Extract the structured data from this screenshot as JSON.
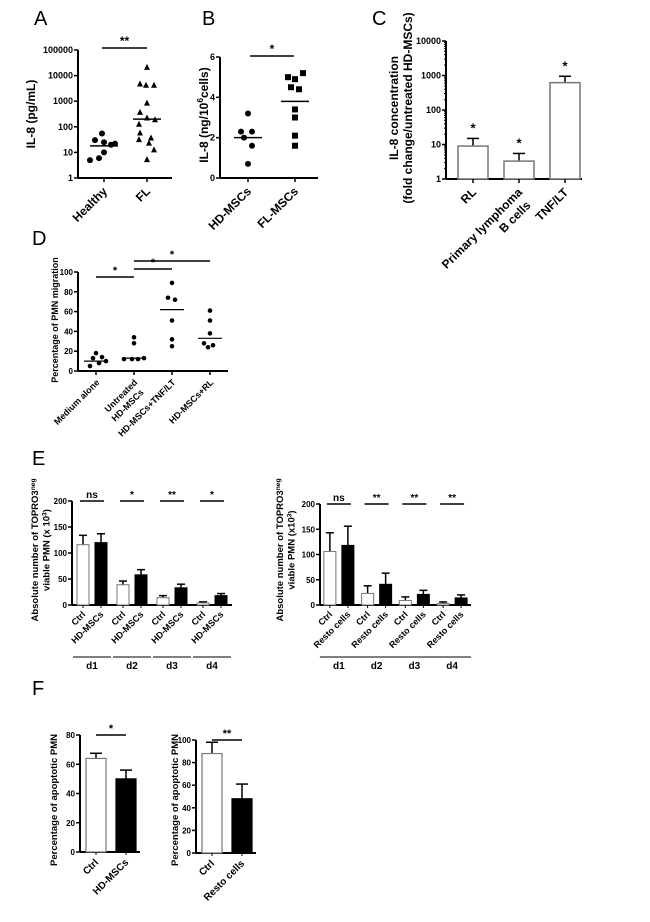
{
  "panels": {
    "A": "A",
    "B": "B",
    "C": "C",
    "D": "D",
    "E": "E",
    "F": "F"
  },
  "chart_data": [
    {
      "id": "A",
      "type": "scatter",
      "ylabel": "IL-8 (pg/mL)",
      "yscale": "log",
      "ylim": [
        1,
        100000
      ],
      "yticks": [
        "1",
        "10",
        "100",
        "1000",
        "10000",
        "100000"
      ],
      "categories": [
        "Healthy",
        "FL"
      ],
      "series": [
        {
          "name": "Healthy",
          "marker": "circle",
          "values": [
            55,
            30,
            25,
            22,
            10,
            5,
            6,
            20
          ],
          "median": 18
        },
        {
          "name": "FL",
          "marker": "triangle",
          "values": [
            20000,
            4500,
            4000,
            4000,
            800,
            350,
            210,
            180,
            120,
            55,
            35,
            30,
            22,
            12,
            5
          ],
          "median": 200
        }
      ],
      "significance": [
        {
          "from": 0,
          "to": 1,
          "label": "**"
        }
      ]
    },
    {
      "id": "B",
      "type": "scatter",
      "ylabel": "IL-8 (ng/10^6cells)",
      "ylim": [
        0,
        6
      ],
      "yticks": [
        "0",
        "2",
        "4",
        "6"
      ],
      "categories": [
        "HD-MSCs",
        "FL-MSCs"
      ],
      "series": [
        {
          "name": "HD-MSCs",
          "marker": "circle",
          "values": [
            3.2,
            2.3,
            2.3,
            2.0,
            1.6,
            0.7
          ],
          "median": 2.0
        },
        {
          "name": "FL-MSCs",
          "marker": "square",
          "values": [
            5.2,
            5.0,
            4.9,
            4.5,
            4.4,
            3.4,
            3.0,
            2.1,
            1.6
          ],
          "median": 3.8
        }
      ],
      "significance": [
        {
          "from": 0,
          "to": 1,
          "label": "*"
        }
      ]
    },
    {
      "id": "C",
      "type": "bar",
      "ylabel": "IL-8 concentration",
      "ylabel2": "(fold change/untreated HD-MSCs)",
      "yscale": "log",
      "ylim": [
        1,
        10000
      ],
      "yticks": [
        "1",
        "10",
        "100",
        "1000",
        "10000"
      ],
      "categories": [
        "RL",
        "Primary lymphoma B cells",
        "TNF/LT"
      ],
      "category_lines": [
        [
          "RL"
        ],
        [
          "Primary lymphoma",
          "B cells"
        ],
        [
          "TNF/LT"
        ]
      ],
      "values": [
        9,
        3.3,
        620
      ],
      "errors_upper": [
        15,
        5.5,
        950
      ],
      "labels": [
        "*",
        "*",
        "*"
      ]
    },
    {
      "id": "D",
      "type": "scatter",
      "ylabel": "Percentage of PMN migration",
      "ylim": [
        0,
        100
      ],
      "yticks": [
        "0",
        "20",
        "40",
        "60",
        "80",
        "100"
      ],
      "categories": [
        "Medium alone",
        "Untreated HD-MSCs",
        "HD-MSCs+TNF/LT",
        "HD-MSCs+RL"
      ],
      "category_lines": [
        [
          "Medium alone"
        ],
        [
          "Untreated",
          "HD-MSCs"
        ],
        [
          "HD-MSCs+TNF/LT"
        ],
        [
          "HD-MSCs+RL"
        ]
      ],
      "series": [
        {
          "name": "Medium alone",
          "values": [
            18,
            14,
            13,
            10,
            8,
            5
          ],
          "median": 10
        },
        {
          "name": "Untreated HD-MSCs",
          "values": [
            34,
            28,
            13,
            12,
            12,
            12
          ],
          "median": 13
        },
        {
          "name": "HD-MSCs+TNF/LT",
          "values": [
            89,
            74,
            72,
            51,
            32,
            25
          ],
          "median": 62
        },
        {
          "name": "HD-MSCs+RL",
          "values": [
            61,
            51,
            38,
            28,
            26,
            24
          ],
          "median": 33
        }
      ],
      "significance": [
        {
          "from": 0,
          "to": 1,
          "label": "*"
        },
        {
          "from": 1,
          "to": 2,
          "label": "*"
        },
        {
          "from": 1,
          "to": 3,
          "label": "*"
        }
      ]
    },
    {
      "id": "E1",
      "type": "bar",
      "ylabel": "Absolute number of TOPRO3neg",
      "ylabel2": "viable PMN (x 10^3)",
      "ylim": [
        0,
        200
      ],
      "yticks": [
        "0",
        "50",
        "100",
        "150",
        "200"
      ],
      "groups": [
        "d1",
        "d2",
        "d3",
        "d4"
      ],
      "categories": [
        "Ctrl",
        "HD-MSCs",
        "Ctrl",
        "HD-MSCs",
        "Ctrl",
        "HD-MSCs",
        "Ctrl",
        "HD-MSCs"
      ],
      "series": [
        {
          "name": "Ctrl",
          "fill": "white",
          "values": [
            116,
            39,
            14,
            4
          ],
          "errors": [
            18,
            7,
            4,
            2
          ]
        },
        {
          "name": "HD-MSCs",
          "fill": "black",
          "values": [
            120,
            58,
            33,
            18
          ],
          "errors": [
            17,
            10,
            7,
            4
          ]
        }
      ],
      "significance": [
        "ns",
        "*",
        "**",
        "*"
      ]
    },
    {
      "id": "E2",
      "type": "bar",
      "ylabel": "Absolute number of TOPRO3neg",
      "ylabel2": "viable PMN (x10^3)",
      "ylim": [
        0,
        200
      ],
      "yticks": [
        "0",
        "50",
        "100",
        "150",
        "200"
      ],
      "groups": [
        "d1",
        "d2",
        "d3",
        "d4"
      ],
      "categories": [
        "Ctrl",
        "Resto cells",
        "Ctrl",
        "Resto cells",
        "Ctrl",
        "Resto cells",
        "Ctrl",
        "Resto cells"
      ],
      "series": [
        {
          "name": "Ctrl",
          "fill": "white",
          "values": [
            106,
            23,
            9,
            3
          ],
          "errors": [
            37,
            15,
            7,
            3
          ]
        },
        {
          "name": "Resto cells",
          "fill": "black",
          "values": [
            118,
            41,
            21,
            14
          ],
          "errors": [
            38,
            22,
            8,
            6
          ]
        }
      ],
      "significance": [
        "ns",
        "**",
        "**",
        "**"
      ]
    },
    {
      "id": "F1",
      "type": "bar",
      "ylabel": "Percentage of apoptotic PMN",
      "ylim": [
        0,
        80
      ],
      "yticks": [
        "0",
        "20",
        "40",
        "60",
        "80"
      ],
      "categories": [
        "Ctrl",
        "HD-MSCs"
      ],
      "values": [
        64,
        50
      ],
      "errors": [
        3.5,
        6
      ],
      "fills": [
        "white",
        "black"
      ],
      "significance": "*"
    },
    {
      "id": "F2",
      "type": "bar",
      "ylabel": "Percentage of apoptotic PMN",
      "ylim": [
        0,
        100
      ],
      "yticks": [
        "0",
        "20",
        "40",
        "60",
        "80",
        "100"
      ],
      "categories": [
        "Ctrl",
        "Resto cells"
      ],
      "values": [
        88,
        48
      ],
      "errors": [
        10,
        13
      ],
      "fills": [
        "white",
        "black"
      ],
      "significance": "**"
    }
  ]
}
